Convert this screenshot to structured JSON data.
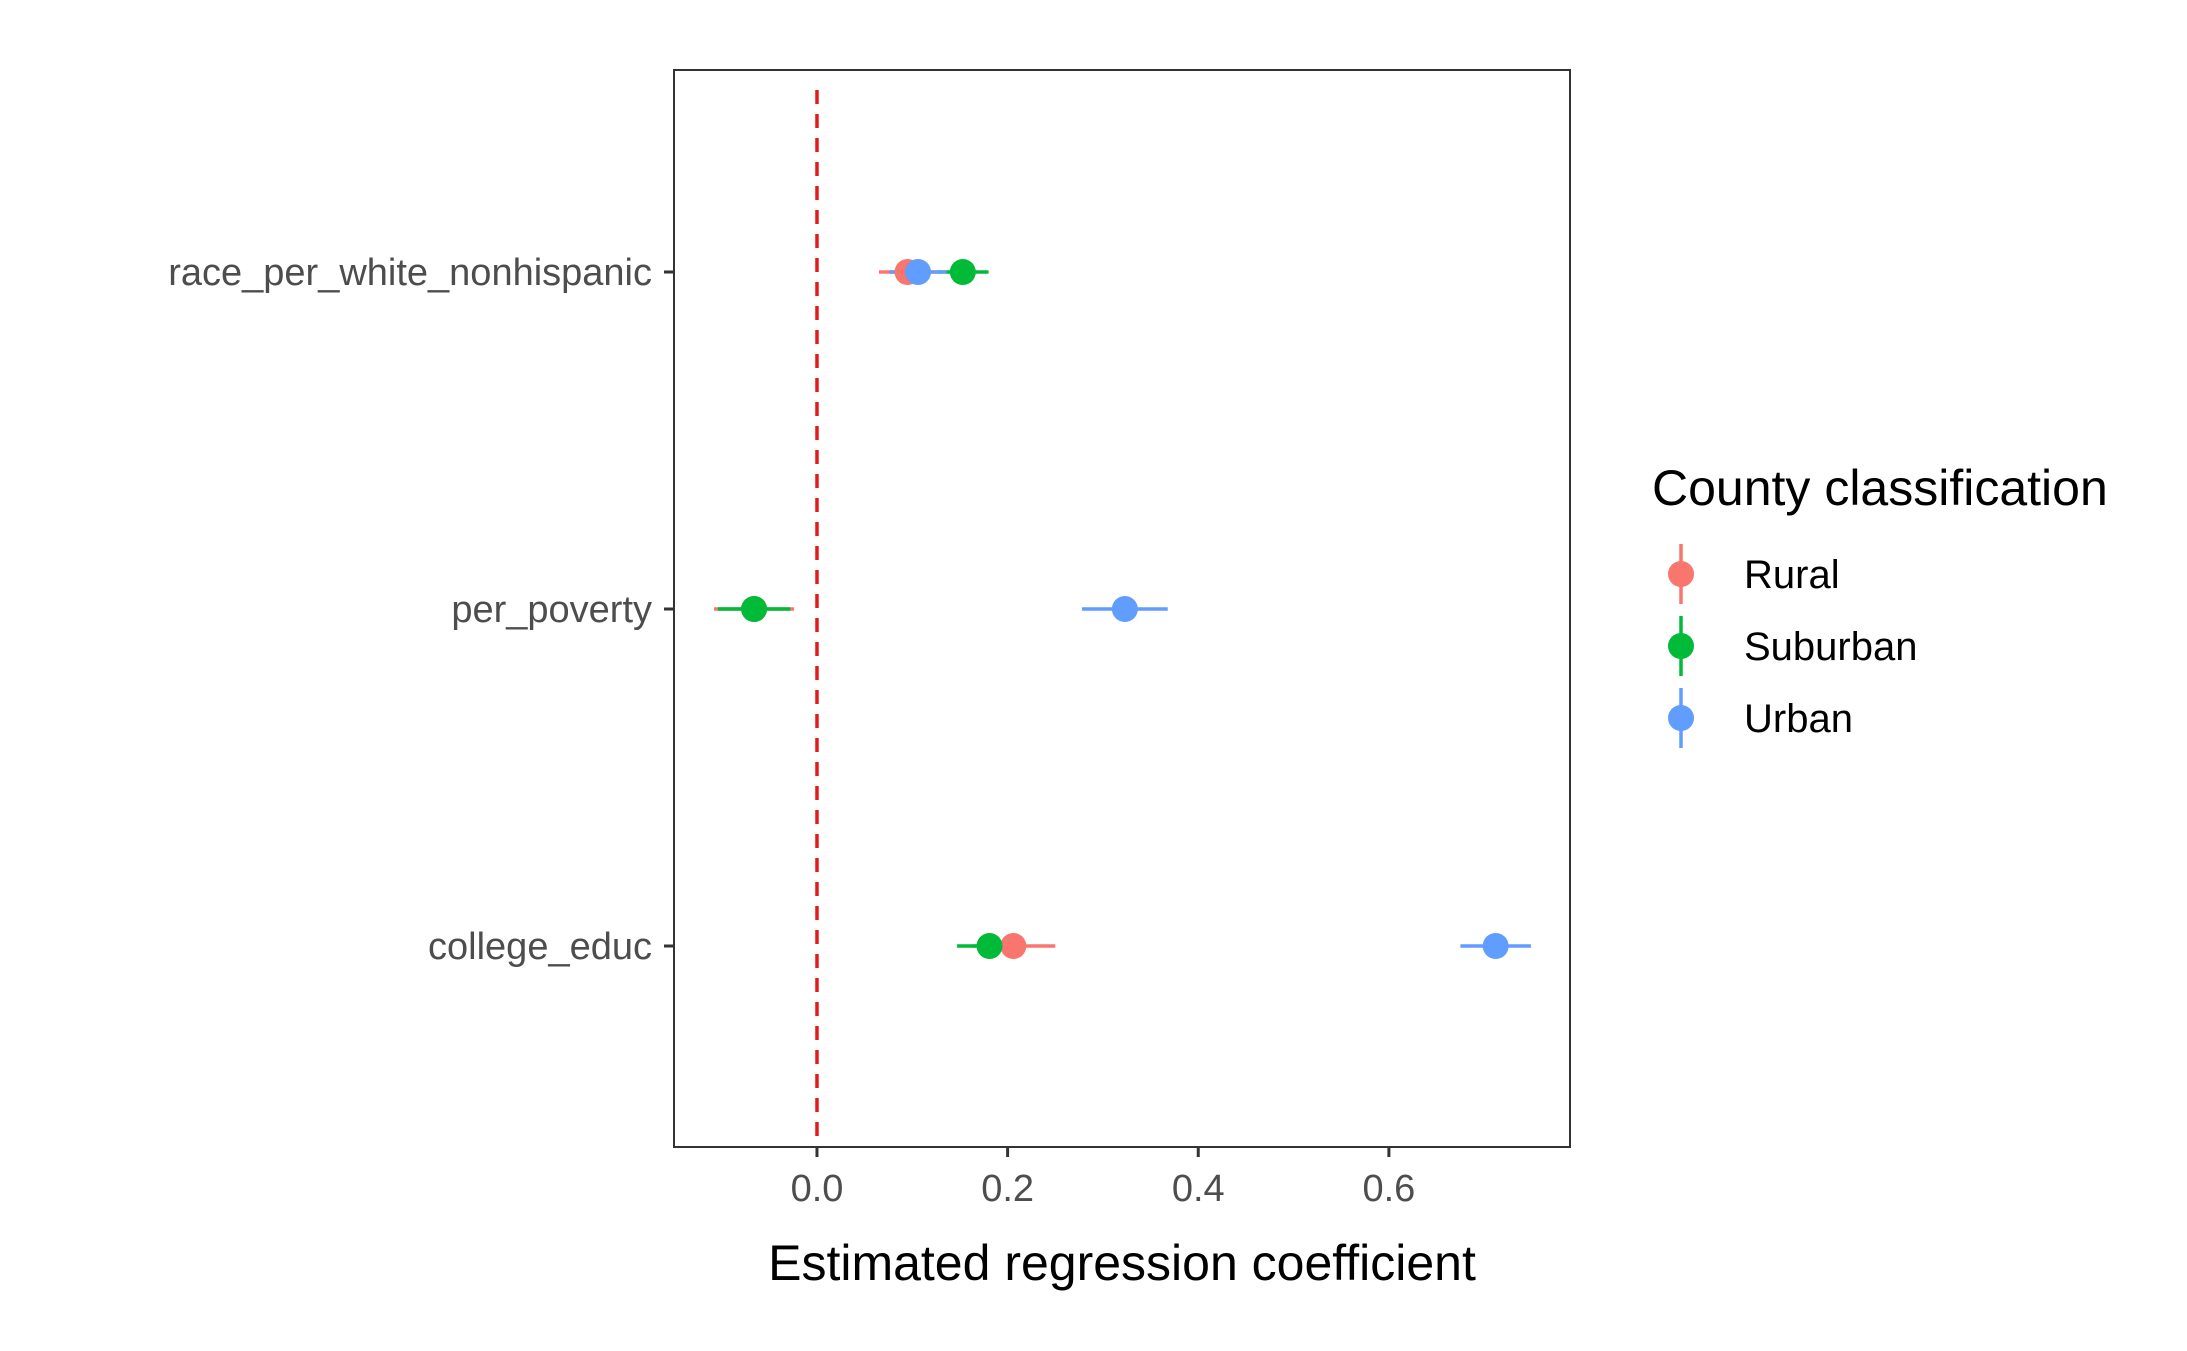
{
  "chart_data": {
    "type": "scatter",
    "subtype": "coefficient-plot",
    "title": "",
    "xlabel": "Estimated regression coefficient",
    "ylabel": "",
    "xlim": [
      -0.15,
      0.79
    ],
    "x_ticks": [
      0.0,
      0.2,
      0.4,
      0.6
    ],
    "x_tick_labels": [
      "0.0",
      "0.2",
      "0.4",
      "0.6"
    ],
    "categories": [
      "race_per_white_nonhispanic",
      "per_poverty",
      "college_educ"
    ],
    "reference_line": {
      "x": 0,
      "style": "dashed",
      "color": "#e31a1c"
    },
    "grid": false,
    "legend": {
      "title": "County classification",
      "position": "right",
      "entries": [
        "Rural",
        "Suburban",
        "Urban"
      ]
    },
    "series": [
      {
        "name": "Rural",
        "color": "#f8766d",
        "points": [
          {
            "category": "race_per_white_nonhispanic",
            "estimate": 0.095,
            "lower": 0.065,
            "upper": 0.125
          },
          {
            "category": "per_poverty",
            "estimate": -0.066,
            "lower": -0.108,
            "upper": -0.024
          },
          {
            "category": "college_educ",
            "estimate": 0.206,
            "lower": 0.162,
            "upper": 0.25
          }
        ]
      },
      {
        "name": "Suburban",
        "color": "#00ba38",
        "points": [
          {
            "category": "race_per_white_nonhispanic",
            "estimate": 0.153,
            "lower": 0.126,
            "upper": 0.18
          },
          {
            "category": "per_poverty",
            "estimate": -0.066,
            "lower": -0.104,
            "upper": -0.028
          },
          {
            "category": "college_educ",
            "estimate": 0.181,
            "lower": 0.147,
            "upper": 0.215
          }
        ]
      },
      {
        "name": "Urban",
        "color": "#619cff",
        "points": [
          {
            "category": "race_per_white_nonhispanic",
            "estimate": 0.106,
            "lower": 0.076,
            "upper": 0.136
          },
          {
            "category": "per_poverty",
            "estimate": 0.323,
            "lower": 0.278,
            "upper": 0.368
          },
          {
            "category": "college_educ",
            "estimate": 0.712,
            "lower": 0.675,
            "upper": 0.749
          }
        ]
      }
    ]
  }
}
